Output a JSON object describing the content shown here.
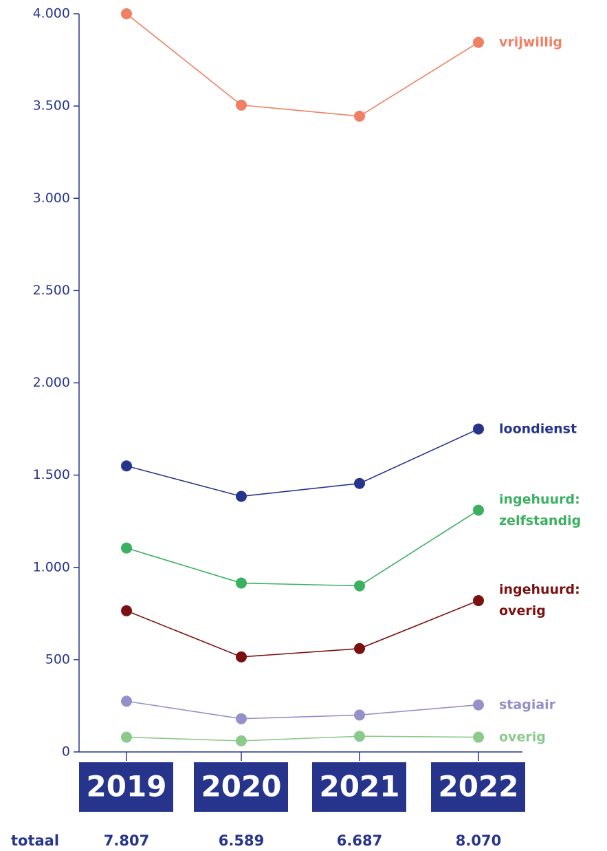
{
  "chart_data": {
    "type": "line",
    "categories": [
      "2019",
      "2020",
      "2021",
      "2022"
    ],
    "ylim": [
      0,
      4000
    ],
    "yticks": [
      0,
      {
        "value": 500,
        "label": "500"
      },
      {
        "value": 1000,
        "label": "1.000"
      },
      {
        "value": 1500,
        "label": "1.500"
      },
      {
        "value": 2000,
        "label": "2.000"
      },
      {
        "value": 2500,
        "label": "2.500"
      },
      {
        "value": 3000,
        "label": "3.000"
      },
      {
        "value": 3500,
        "label": "3.500"
      },
      {
        "value": 4000,
        "label": "4.000"
      }
    ],
    "axis_color": "#27348b",
    "series": [
      {
        "name": "vrijwillig",
        "color": "#f07f63",
        "values": [
          4000,
          3505,
          3445,
          3845
        ]
      },
      {
        "name": "loondienst",
        "color": "#27348b",
        "values": [
          1550,
          1385,
          1455,
          1750
        ]
      },
      {
        "name": "ingehuurd: zelfstandig",
        "color": "#3bb061",
        "values": [
          1105,
          915,
          900,
          1310
        ]
      },
      {
        "name": "ingehuurd: overig",
        "color": "#7b1010",
        "values": [
          765,
          515,
          560,
          820
        ]
      },
      {
        "name": "stagiair",
        "color": "#9490c8",
        "values": [
          275,
          180,
          200,
          255
        ]
      },
      {
        "name": "overig",
        "color": "#8cc98d",
        "values": [
          80,
          60,
          85,
          80
        ]
      }
    ],
    "totals": {
      "label": "totaal",
      "values": [
        7807,
        6589,
        6687,
        8070
      ],
      "value_labels": [
        "7.807",
        "6.589",
        "6.687",
        "8.070"
      ]
    }
  }
}
